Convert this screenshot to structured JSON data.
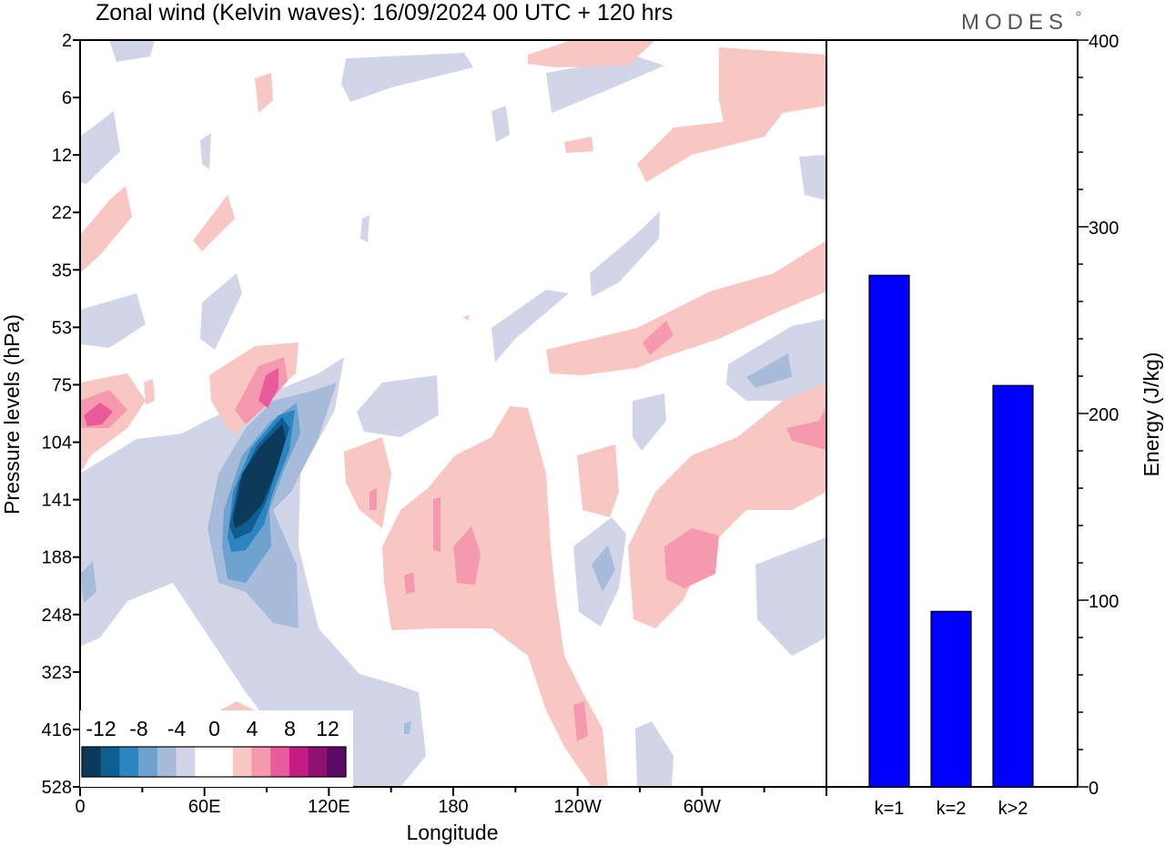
{
  "header": {
    "title": "Zonal wind (Kelvin waves):  16/09/2024  00 UTC  + 120 hrs",
    "brand": "MODES"
  },
  "colors": {
    "neg": [
      "#0d3a5a",
      "#0f5e92",
      "#2b85c0",
      "#6ea3cf",
      "#a7bcdb",
      "#d2d5e8"
    ],
    "zero": "#ffffff",
    "pos": [
      "#f8c6c3",
      "#f499ae",
      "#ea5b9a",
      "#c41c85",
      "#901170",
      "#5a0b63"
    ],
    "bar": "#0000ff"
  },
  "chart_data": [
    {
      "type": "heatmap",
      "title": "Zonal wind (Kelvin waves):  16/09/2024  00 UTC  + 120 hrs",
      "xlabel": "Longitude",
      "ylabel": "Pressure levels (hPa)",
      "x_ticks": [
        "0",
        "60E",
        "120E",
        "180",
        "120W",
        "60W"
      ],
      "y_ticks": [
        "2",
        "6",
        "12",
        "22",
        "35",
        "53",
        "75",
        "104",
        "141",
        "188",
        "248",
        "323",
        "416",
        "528"
      ],
      "legend_labels": [
        "-12",
        "-8",
        "-4",
        "0",
        "4",
        "8",
        "12"
      ],
      "contour_levels": [
        -12,
        -10,
        -8,
        -6,
        -4,
        -2,
        2,
        4,
        6,
        8,
        10,
        12
      ],
      "features": [
        {
          "lon": 85,
          "level": 141,
          "value": -13
        },
        {
          "lon": 90,
          "level": 75,
          "value": 6
        },
        {
          "lon": 8,
          "level": 90,
          "value": 6
        },
        {
          "lon": 185,
          "level": 188,
          "value": 5
        },
        {
          "lon": 300,
          "level": 188,
          "value": 5
        },
        {
          "lon": 250,
          "level": 53,
          "value": 5
        },
        {
          "lon": 238,
          "level": 188,
          "value": -4
        },
        {
          "lon": 315,
          "level": 75,
          "value": -4
        }
      ]
    },
    {
      "type": "bar",
      "categories": [
        "k=1",
        "k=2",
        "k>2"
      ],
      "values": [
        274,
        94,
        215
      ],
      "ylabel": "Energy (J/kg)",
      "ylim": [
        0,
        400
      ],
      "y_ticks": [
        "0",
        "100",
        "200",
        "300",
        "400"
      ]
    }
  ]
}
